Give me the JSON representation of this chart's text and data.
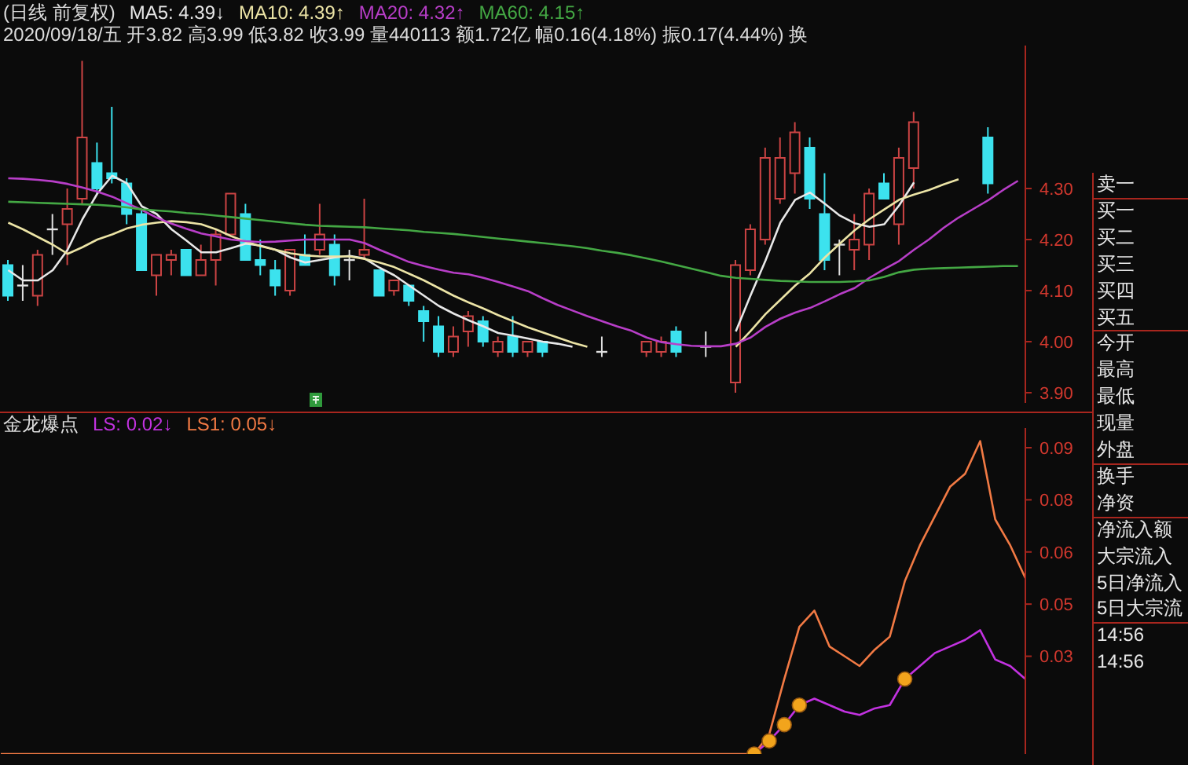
{
  "chart_data": [
    {
      "type": "candlestick",
      "title": "(日线 前复权)",
      "subtitle": "2020/09/18/五 开3.82 高3.99 低3.82 收3.99 量440113 额1.72亿 幅0.16(4.18%) 振0.17(4.44%) 换",
      "categories": [
        null,
        null,
        null,
        null,
        null,
        null,
        null,
        null,
        null,
        null,
        null,
        null,
        null,
        null,
        null,
        null,
        null,
        null,
        null,
        null,
        null,
        null,
        null,
        null,
        null,
        null,
        null,
        null,
        null,
        null,
        null,
        null,
        null,
        null,
        null,
        null,
        null,
        null,
        null,
        null,
        null,
        null,
        null,
        null,
        null,
        null,
        null,
        null,
        null,
        null,
        null,
        null,
        null,
        null,
        null,
        null,
        null,
        null,
        null,
        null,
        null,
        null,
        null,
        null,
        null,
        null,
        null,
        null,
        null
      ],
      "ohlc": [
        [
          4.15,
          4.16,
          4.08,
          4.09
        ],
        [
          4.11,
          4.15,
          4.08,
          4.11
        ],
        [
          4.09,
          4.18,
          4.07,
          4.17
        ],
        [
          4.22,
          4.25,
          4.17,
          4.22
        ],
        [
          4.23,
          4.3,
          4.15,
          4.26
        ],
        [
          4.28,
          4.55,
          4.27,
          4.4
        ],
        [
          4.35,
          4.39,
          4.29,
          4.3
        ],
        [
          4.33,
          4.46,
          4.31,
          4.32
        ],
        [
          4.31,
          4.32,
          4.23,
          4.25
        ],
        [
          4.25,
          4.26,
          4.14,
          4.14
        ],
        [
          4.13,
          4.17,
          4.09,
          4.17
        ],
        [
          4.16,
          4.18,
          4.13,
          4.17
        ],
        [
          4.18,
          4.18,
          4.13,
          4.13
        ],
        [
          4.13,
          4.19,
          4.13,
          4.16
        ],
        [
          4.16,
          4.22,
          4.11,
          4.21
        ],
        [
          4.21,
          4.29,
          4.21,
          4.29
        ],
        [
          4.25,
          4.27,
          4.16,
          4.16
        ],
        [
          4.16,
          4.2,
          4.13,
          4.15
        ],
        [
          4.14,
          4.16,
          4.09,
          4.11
        ],
        [
          4.1,
          4.18,
          4.09,
          4.18
        ],
        [
          4.17,
          4.21,
          4.15,
          4.15
        ],
        [
          4.18,
          4.27,
          4.17,
          4.21
        ],
        [
          4.19,
          4.21,
          4.11,
          4.13
        ],
        [
          4.16,
          4.18,
          4.12,
          4.16
        ],
        [
          4.17,
          4.28,
          4.16,
          4.18
        ],
        [
          4.14,
          4.14,
          4.09,
          4.09
        ],
        [
          4.1,
          4.12,
          4.09,
          4.12
        ],
        [
          4.11,
          4.11,
          4.07,
          4.08
        ],
        [
          4.06,
          4.07,
          4.0,
          4.04
        ],
        [
          4.03,
          4.05,
          3.97,
          3.98
        ],
        [
          3.98,
          4.03,
          3.97,
          4.01
        ],
        [
          4.02,
          4.06,
          3.99,
          4.05
        ],
        [
          4.04,
          4.05,
          3.99,
          4.0
        ],
        [
          3.98,
          4.01,
          3.97,
          4.0
        ],
        [
          4.01,
          4.05,
          3.97,
          3.98
        ],
        [
          3.98,
          4.0,
          3.97,
          4.0
        ],
        [
          4.0,
          4.0,
          3.97,
          3.98
        ],
        null,
        null,
        null,
        [
          3.98,
          4.01,
          3.97,
          3.98
        ],
        null,
        null,
        [
          3.98,
          4.0,
          3.97,
          4.0
        ],
        [
          3.98,
          4.01,
          3.97,
          4.0
        ],
        [
          4.02,
          4.03,
          3.97,
          3.98
        ],
        null,
        [
          3.99,
          4.02,
          3.97,
          3.99
        ],
        null,
        [
          3.92,
          4.16,
          3.9,
          4.15
        ],
        [
          4.14,
          4.23,
          4.13,
          4.22
        ],
        [
          4.2,
          4.38,
          4.19,
          4.36
        ],
        [
          4.28,
          4.4,
          4.27,
          4.36
        ],
        [
          4.33,
          4.43,
          4.29,
          4.41
        ],
        [
          4.38,
          4.4,
          4.26,
          4.28
        ],
        [
          4.25,
          4.33,
          4.14,
          4.16
        ],
        [
          4.19,
          4.2,
          4.13,
          4.19
        ],
        [
          4.18,
          4.25,
          4.14,
          4.2
        ],
        [
          4.19,
          4.3,
          4.16,
          4.29
        ],
        [
          4.31,
          4.33,
          4.28,
          4.28
        ],
        [
          4.23,
          4.38,
          4.19,
          4.36
        ],
        [
          4.34,
          4.45,
          4.3,
          4.43
        ],
        null,
        null,
        null,
        null,
        [
          4.4,
          4.42,
          4.29,
          4.31
        ],
        null,
        null
      ],
      "colors": [
        "#3ce2ee",
        "#e0e0e0",
        "#cc4444",
        "#e0e0e0",
        "#cc4444",
        "#cc4444",
        "#3ce2ee",
        "#3ce2ee",
        "#3ce2ee",
        "#3ce2ee",
        "#cc4444",
        "#cc4444",
        "#3ce2ee",
        "#cc4444",
        "#cc4444",
        "#cc4444",
        "#3ce2ee",
        "#3ce2ee",
        "#3ce2ee",
        "#cc4444",
        "#3ce2ee",
        "#cc4444",
        "#3ce2ee",
        "#e0e0e0",
        "#cc4444",
        "#3ce2ee",
        "#cc4444",
        "#3ce2ee",
        "#3ce2ee",
        "#3ce2ee",
        "#cc4444",
        "#cc4444",
        "#3ce2ee",
        "#cc4444",
        "#3ce2ee",
        "#cc4444",
        "#3ce2ee",
        null,
        null,
        null,
        "#e0e0e0",
        null,
        null,
        "#cc4444",
        "#cc4444",
        "#3ce2ee",
        null,
        "#e0e0e0",
        null,
        "#cc4444",
        "#cc4444",
        "#cc4444",
        "#cc4444",
        "#cc4444",
        "#3ce2ee",
        "#3ce2ee",
        "#e0e0e0",
        "#cc4444",
        "#cc4444",
        "#3ce2ee",
        "#cc4444",
        "#cc4444",
        null,
        null,
        null,
        null,
        "#3ce2ee",
        null,
        null
      ],
      "series": [
        {
          "type": "line",
          "name": "MA5: 4.39↓",
          "color": "#e8e8e8",
          "values": [
            4.14,
            4.12,
            4.12,
            4.14,
            4.18,
            4.24,
            4.29,
            4.325,
            4.31,
            4.265,
            4.25,
            4.22,
            4.198,
            4.175,
            4.175,
            4.183,
            4.192,
            4.188,
            4.18,
            4.165,
            4.155,
            4.16,
            4.165,
            4.168,
            4.163,
            4.145,
            4.13,
            4.11,
            4.09,
            4.07,
            4.055,
            4.042,
            4.03,
            4.017,
            4.012,
            4.006,
            4.0,
            3.996,
            3.99,
            null,
            null,
            null,
            null,
            null,
            null,
            null,
            null,
            null,
            null,
            4.02,
            4.091,
            4.159,
            4.233,
            4.278,
            4.292,
            4.27,
            4.247,
            4.232,
            4.225,
            4.23,
            4.267,
            4.312,
            null,
            null,
            null,
            null,
            null,
            null,
            null
          ]
        },
        {
          "type": "line",
          "name": "MA10: 4.39↑",
          "color": "#ece4a6",
          "values": [
            4.233,
            4.22,
            4.205,
            4.19,
            4.172,
            4.185,
            4.2,
            4.21,
            4.222,
            4.229,
            4.233,
            4.236,
            4.234,
            4.23,
            4.22,
            4.207,
            4.196,
            4.187,
            4.18,
            4.173,
            4.169,
            4.167,
            4.167,
            4.167,
            4.162,
            4.155,
            4.146,
            4.133,
            4.12,
            4.105,
            4.09,
            4.077,
            4.065,
            4.052,
            4.04,
            4.028,
            4.018,
            4.008,
            3.998,
            3.99,
            null,
            null,
            null,
            null,
            null,
            null,
            null,
            null,
            null,
            3.99,
            4.021,
            4.054,
            4.082,
            4.11,
            4.134,
            4.165,
            4.192,
            4.218,
            4.24,
            4.259,
            4.278,
            4.288,
            4.297,
            4.308,
            4.318,
            null,
            null,
            null,
            null
          ]
        },
        {
          "type": "line",
          "name": "MA20: 4.32↑",
          "color": "#b83ec8",
          "values": [
            4.32,
            4.319,
            4.317,
            4.314,
            4.309,
            4.302,
            4.294,
            4.284,
            4.271,
            4.258,
            4.243,
            4.231,
            4.221,
            4.212,
            4.206,
            4.2,
            4.197,
            4.195,
            4.196,
            4.198,
            4.2,
            4.2,
            4.2,
            4.2,
            4.193,
            4.18,
            4.168,
            4.156,
            4.148,
            4.141,
            4.135,
            4.132,
            4.125,
            4.117,
            4.108,
            4.099,
            4.085,
            4.072,
            4.061,
            4.05,
            4.04,
            4.03,
            4.021,
            4.008,
            3.999,
            3.995,
            3.992,
            3.991,
            3.991,
            3.996,
            4.008,
            4.029,
            4.045,
            4.057,
            4.066,
            4.079,
            4.093,
            4.105,
            4.125,
            4.142,
            4.158,
            4.18,
            4.2,
            4.223,
            4.243,
            4.26,
            4.277,
            4.297,
            4.315
          ]
        },
        {
          "type": "line",
          "name": "MA60: 4.15↑",
          "color": "#44a844",
          "values": [
            4.274,
            4.273,
            4.272,
            4.271,
            4.27,
            4.269,
            4.268,
            4.266,
            4.263,
            4.259,
            4.257,
            4.255,
            4.252,
            4.25,
            4.247,
            4.244,
            4.241,
            4.238,
            4.235,
            4.232,
            4.229,
            4.227,
            4.226,
            4.225,
            4.224,
            4.222,
            4.22,
            4.218,
            4.215,
            4.213,
            4.211,
            4.208,
            4.205,
            4.202,
            4.199,
            4.196,
            4.193,
            4.19,
            4.187,
            4.183,
            4.178,
            4.174,
            4.169,
            4.163,
            4.157,
            4.15,
            4.143,
            4.136,
            4.129,
            4.125,
            4.123,
            4.121,
            4.119,
            4.118,
            4.117,
            4.117,
            4.117,
            4.118,
            4.12,
            4.127,
            4.136,
            4.141,
            4.143,
            4.144,
            4.145,
            4.146,
            4.147,
            4.148,
            4.148
          ]
        }
      ],
      "ylim": [
        3.88,
        4.58
      ],
      "yticks": [
        {
          "value": 3.9,
          "label": "3.90"
        },
        {
          "value": 4.0,
          "label": "4.00"
        },
        {
          "value": 4.1,
          "label": "4.10"
        },
        {
          "value": 4.2,
          "label": "4.20"
        },
        {
          "value": 4.3,
          "label": "4.30"
        }
      ],
      "tick_labels": "y"
    },
    {
      "type": "line",
      "title": "金龙爆点",
      "categories": [
        null,
        null,
        null,
        null,
        null,
        null,
        null,
        null,
        null,
        null,
        null,
        null,
        null,
        null,
        null,
        null,
        null,
        null,
        null,
        null,
        null,
        null,
        null,
        null,
        null,
        null,
        null,
        null,
        null,
        null,
        null,
        null,
        null,
        null,
        null,
        null,
        null,
        null,
        null,
        null,
        null,
        null,
        null,
        null,
        null,
        null,
        null,
        null,
        null,
        null,
        null,
        null,
        null,
        null,
        null,
        null,
        null,
        null,
        null,
        null,
        null,
        null,
        null,
        null,
        null,
        null,
        null,
        null,
        null
      ],
      "series": [
        {
          "name": "LS: 0.02↓",
          "color": "#c232e0",
          "values": [
            null,
            null,
            null,
            null,
            null,
            null,
            null,
            null,
            null,
            null,
            null,
            null,
            null,
            null,
            null,
            null,
            null,
            null,
            null,
            null,
            null,
            null,
            null,
            null,
            null,
            null,
            null,
            null,
            null,
            null,
            null,
            null,
            null,
            null,
            null,
            null,
            null,
            null,
            null,
            null,
            null,
            null,
            null,
            null,
            null,
            null,
            null,
            null,
            null,
            null,
            0,
            0.004,
            0.009,
            0.015,
            0.017,
            0.015,
            0.013,
            0.012,
            0.014,
            0.015,
            0.023,
            0.027,
            0.031,
            0.033,
            0.035,
            0.038,
            0.029,
            0.027,
            0.023
          ]
        },
        {
          "name": "LS1: 0.05↓",
          "color": "#f27a44",
          "values": [
            0,
            0,
            0,
            0,
            0,
            0,
            0,
            0,
            0,
            0,
            0,
            0,
            0,
            0,
            0,
            0,
            0,
            0,
            0,
            0,
            0,
            0,
            0,
            0,
            0,
            0,
            0,
            0,
            0,
            0,
            0,
            0,
            0,
            0,
            0,
            0,
            0,
            0,
            0,
            0,
            0,
            0,
            0,
            0,
            0,
            0,
            0,
            0,
            0,
            0,
            0,
            0.006,
            0.023,
            0.039,
            0.044,
            0.033,
            0.03,
            0.027,
            0.032,
            0.036,
            0.053,
            0.064,
            0.073,
            0.082,
            0.086,
            0.096,
            0.072,
            0.064,
            0.054
          ]
        },
        {
          "type": "scatter",
          "color": "#f2a41c",
          "marker": "circle",
          "values": [
            null,
            null,
            null,
            null,
            null,
            null,
            null,
            null,
            null,
            null,
            null,
            null,
            null,
            null,
            null,
            null,
            null,
            null,
            null,
            null,
            null,
            null,
            null,
            null,
            null,
            null,
            null,
            null,
            null,
            null,
            null,
            null,
            null,
            null,
            null,
            null,
            null,
            null,
            null,
            null,
            null,
            null,
            null,
            null,
            null,
            null,
            null,
            null,
            null,
            null,
            0,
            0.004,
            0.009,
            0.015,
            null,
            null,
            null,
            null,
            null,
            null,
            0.023,
            null,
            null,
            null,
            null,
            null,
            null,
            null,
            null
          ]
        }
      ],
      "ylim": [
        0,
        0.1
      ],
      "yticks": [
        {
          "value": 0.094,
          "label": "0.09"
        },
        {
          "value": 0.078,
          "label": "0.08"
        },
        {
          "value": 0.062,
          "label": "0.06"
        },
        {
          "value": 0.046,
          "label": "0.05"
        },
        0.03
      ],
      "tick_labels": "y"
    },
    {
      "type": "other",
      "annotations": [
        "卖一",
        "买一",
        "买二",
        "买三",
        "买四",
        "买五",
        "今开",
        "最高",
        "最低",
        "现量",
        "外盘",
        "换手",
        "净资",
        "净流入额",
        "大宗流入",
        "5日净流入",
        "5日大宗流",
        "14:56",
        "14:56"
      ]
    }
  ]
}
